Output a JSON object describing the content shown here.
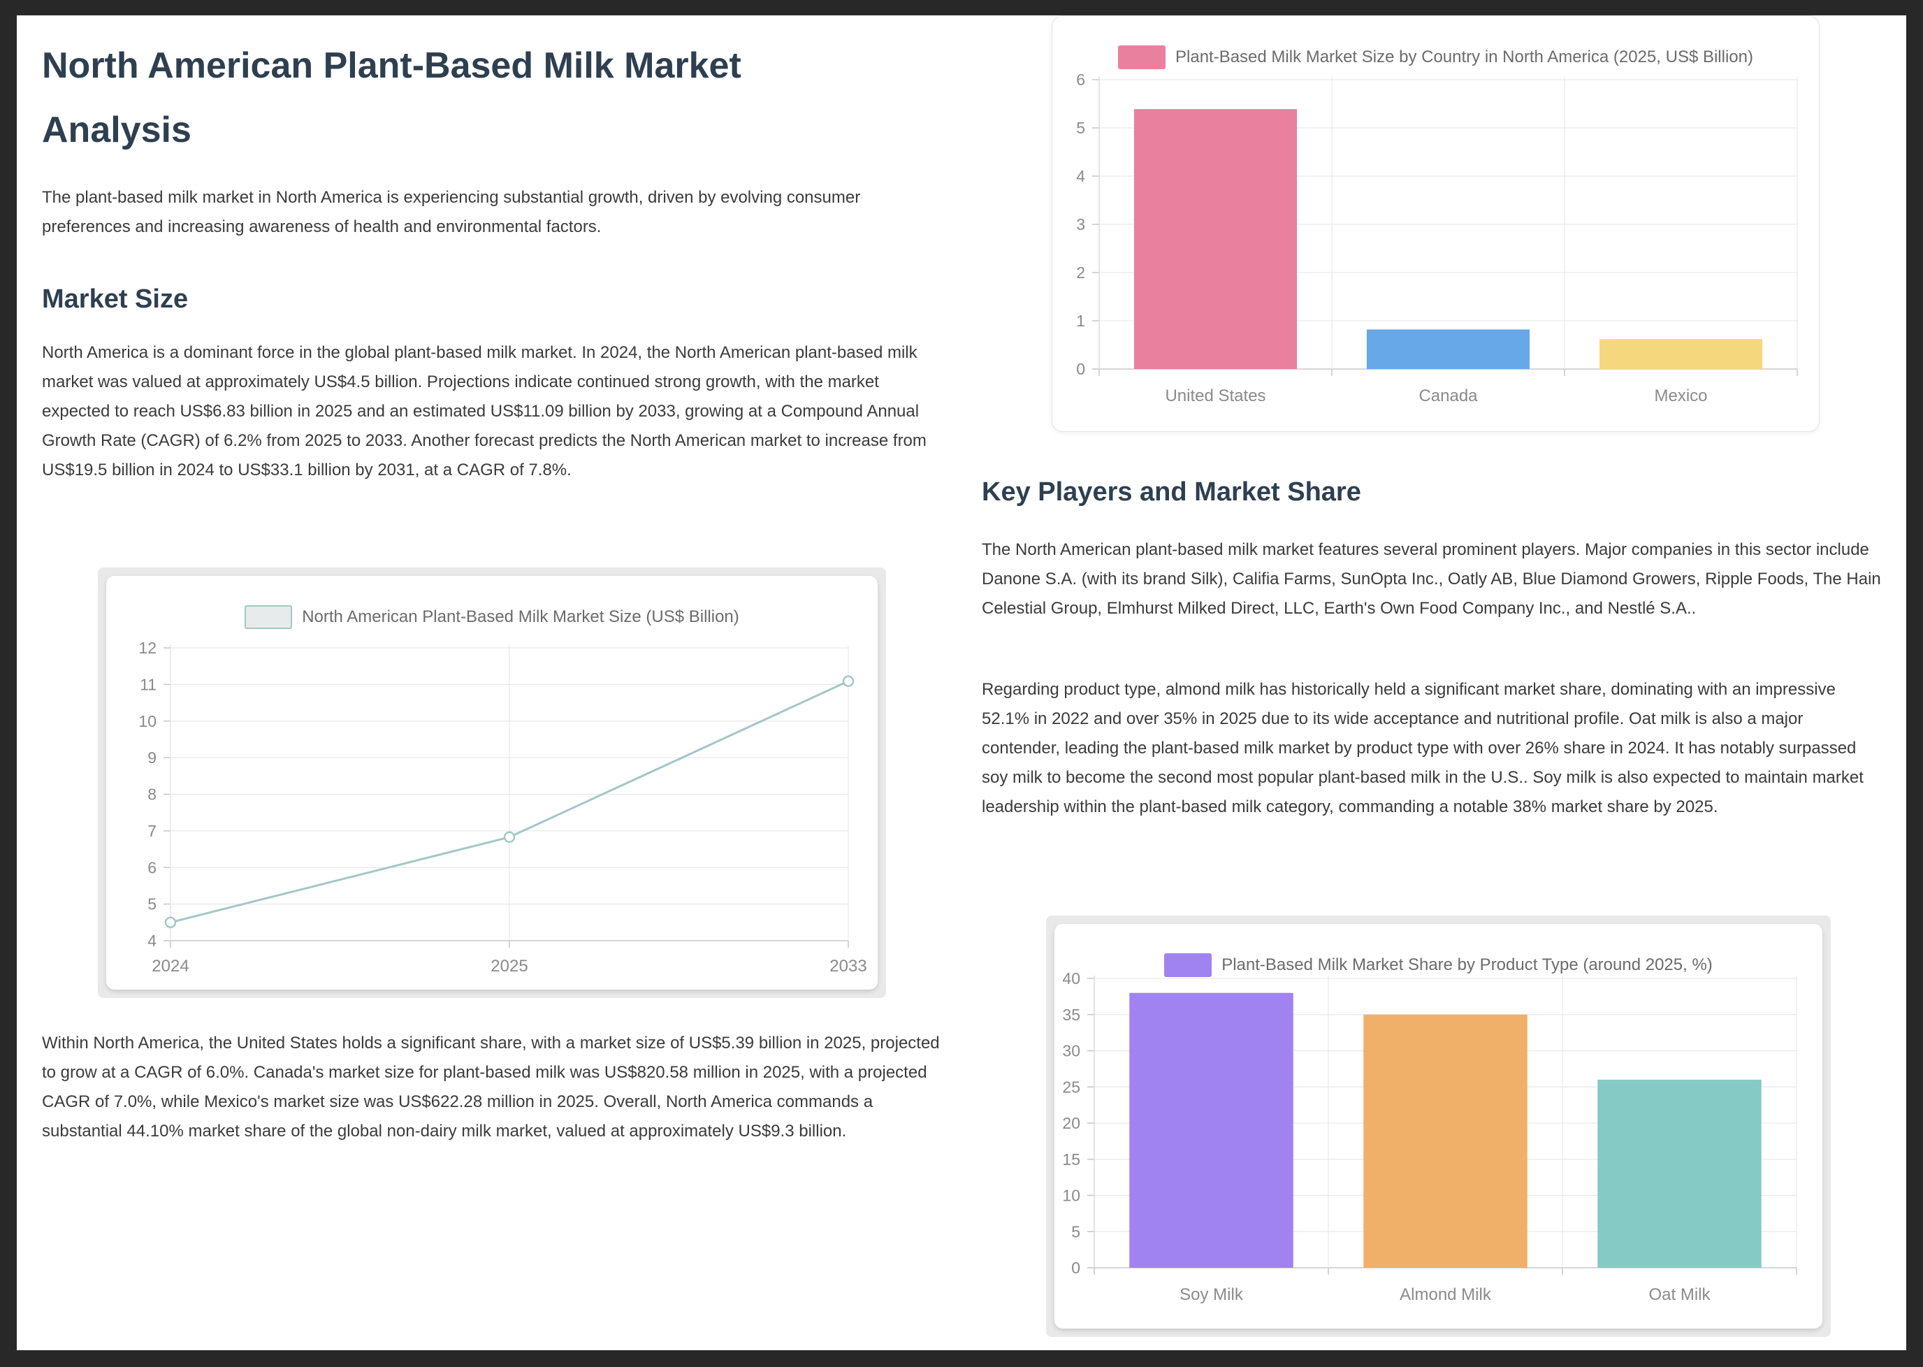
{
  "page": {
    "title": "North American Plant-Based Milk Market Analysis",
    "intro": "The plant-based milk market in North America is experiencing substantial growth, driven by evolving consumer preferences and increasing awareness of health and environmental factors.",
    "sections": {
      "market_size": {
        "heading": "Market Size",
        "p1": "North America is a dominant force in the global plant-based milk market. In 2024, the North American plant-based milk market was valued at approximately US$4.5 billion. Projections indicate continued strong growth, with the market expected to reach US$6.83 billion in 2025 and an estimated US$11.09 billion by 2033, growing at a Compound Annual Growth Rate (CAGR) of 6.2% from 2025 to 2033. Another forecast predicts the North American market to increase from US$19.5 billion in 2024 to US$33.1 billion by 2031, at a CAGR of 7.8%.",
        "p2": "Within North America, the United States holds a significant share, with a market size of US$5.39 billion in 2025, projected to grow at a CAGR of 6.0%. Canada's market size for plant-based milk was US$820.58 million in 2025, with a projected CAGR of 7.0%, while Mexico's market size was US$622.28 million in 2025. Overall, North America commands a substantial 44.10% market share of the global non-dairy milk market, valued at approximately US$9.3 billion."
      },
      "key_players": {
        "heading": "Key Players and Market Share",
        "p1": "The North American plant-based milk market features several prominent players. Major companies in this sector include Danone S.A. (with its brand Silk), Califia Farms, SunOpta Inc., Oatly AB, Blue Diamond Growers, Ripple Foods, The Hain Celestial Group, Elmhurst Milked Direct, LLC, Earth's Own Food Company Inc., and Nestlé S.A..",
        "p2": "Regarding product type, almond milk has historically held a significant market share, dominating with an impressive 52.1% in 2022 and over 35% in 2025 due to its wide acceptance and nutritional profile. Oat milk is also a major contender, leading the plant-based milk market by product type with over 26% share in 2024. It has notably surpassed soy milk to become the second most popular plant-based milk in the U.S.. Soy milk is also expected to maintain market leadership within the plant-based milk category, commanding a notable 38% market share by 2025."
      }
    }
  },
  "colors": {
    "frame": "#282828",
    "heading": "#2e3f50",
    "body_text": "#3b3b3b",
    "grid": "#e9e9e9",
    "axis": "#c9c9c9",
    "tick_label": "#8a8a8a",
    "legend_text": "#6b6b6b"
  },
  "chart_data": [
    {
      "id": "na-market-size-line",
      "type": "line",
      "legend": "North American Plant-Based Milk Market Size (US$ Billion)",
      "legend_position": "top",
      "categories": [
        "2024",
        "2025",
        "2033"
      ],
      "values": [
        4.5,
        6.83,
        11.09
      ],
      "ylim": [
        4,
        12
      ],
      "ystep": 1,
      "grid": true,
      "line_color": "#a3c7c5",
      "point_fill": "#ffffff",
      "legend_swatch": {
        "fill": "#e8ebeb",
        "stroke": "#a3c7c5"
      }
    },
    {
      "id": "market-size-by-country",
      "type": "bar",
      "legend": "Plant-Based Milk Market Size by Country in North America (2025, US$ Billion)",
      "legend_position": "top",
      "categories": [
        "United States",
        "Canada",
        "Mexico"
      ],
      "values": [
        5.39,
        0.82,
        0.62
      ],
      "ylim": [
        0,
        6
      ],
      "ystep": 1,
      "grid": true,
      "bar_colors": [
        "#e9819e",
        "#66a8e8",
        "#f5d77d"
      ],
      "legend_swatch": {
        "fill": "#e9819e",
        "stroke": "#e9819e"
      }
    },
    {
      "id": "market-share-by-product-type",
      "type": "bar",
      "legend": "Plant-Based Milk Market Share by Product Type (around 2025, %)",
      "legend_position": "top",
      "categories": [
        "Soy Milk",
        "Almond Milk",
        "Oat Milk"
      ],
      "values": [
        38,
        35,
        26
      ],
      "ylim": [
        0,
        40
      ],
      "ystep": 5,
      "grid": true,
      "bar_colors": [
        "#a083f0",
        "#f0b06a",
        "#85cac4"
      ],
      "legend_swatch": {
        "fill": "#a083f0",
        "stroke": "#a083f0"
      }
    }
  ]
}
